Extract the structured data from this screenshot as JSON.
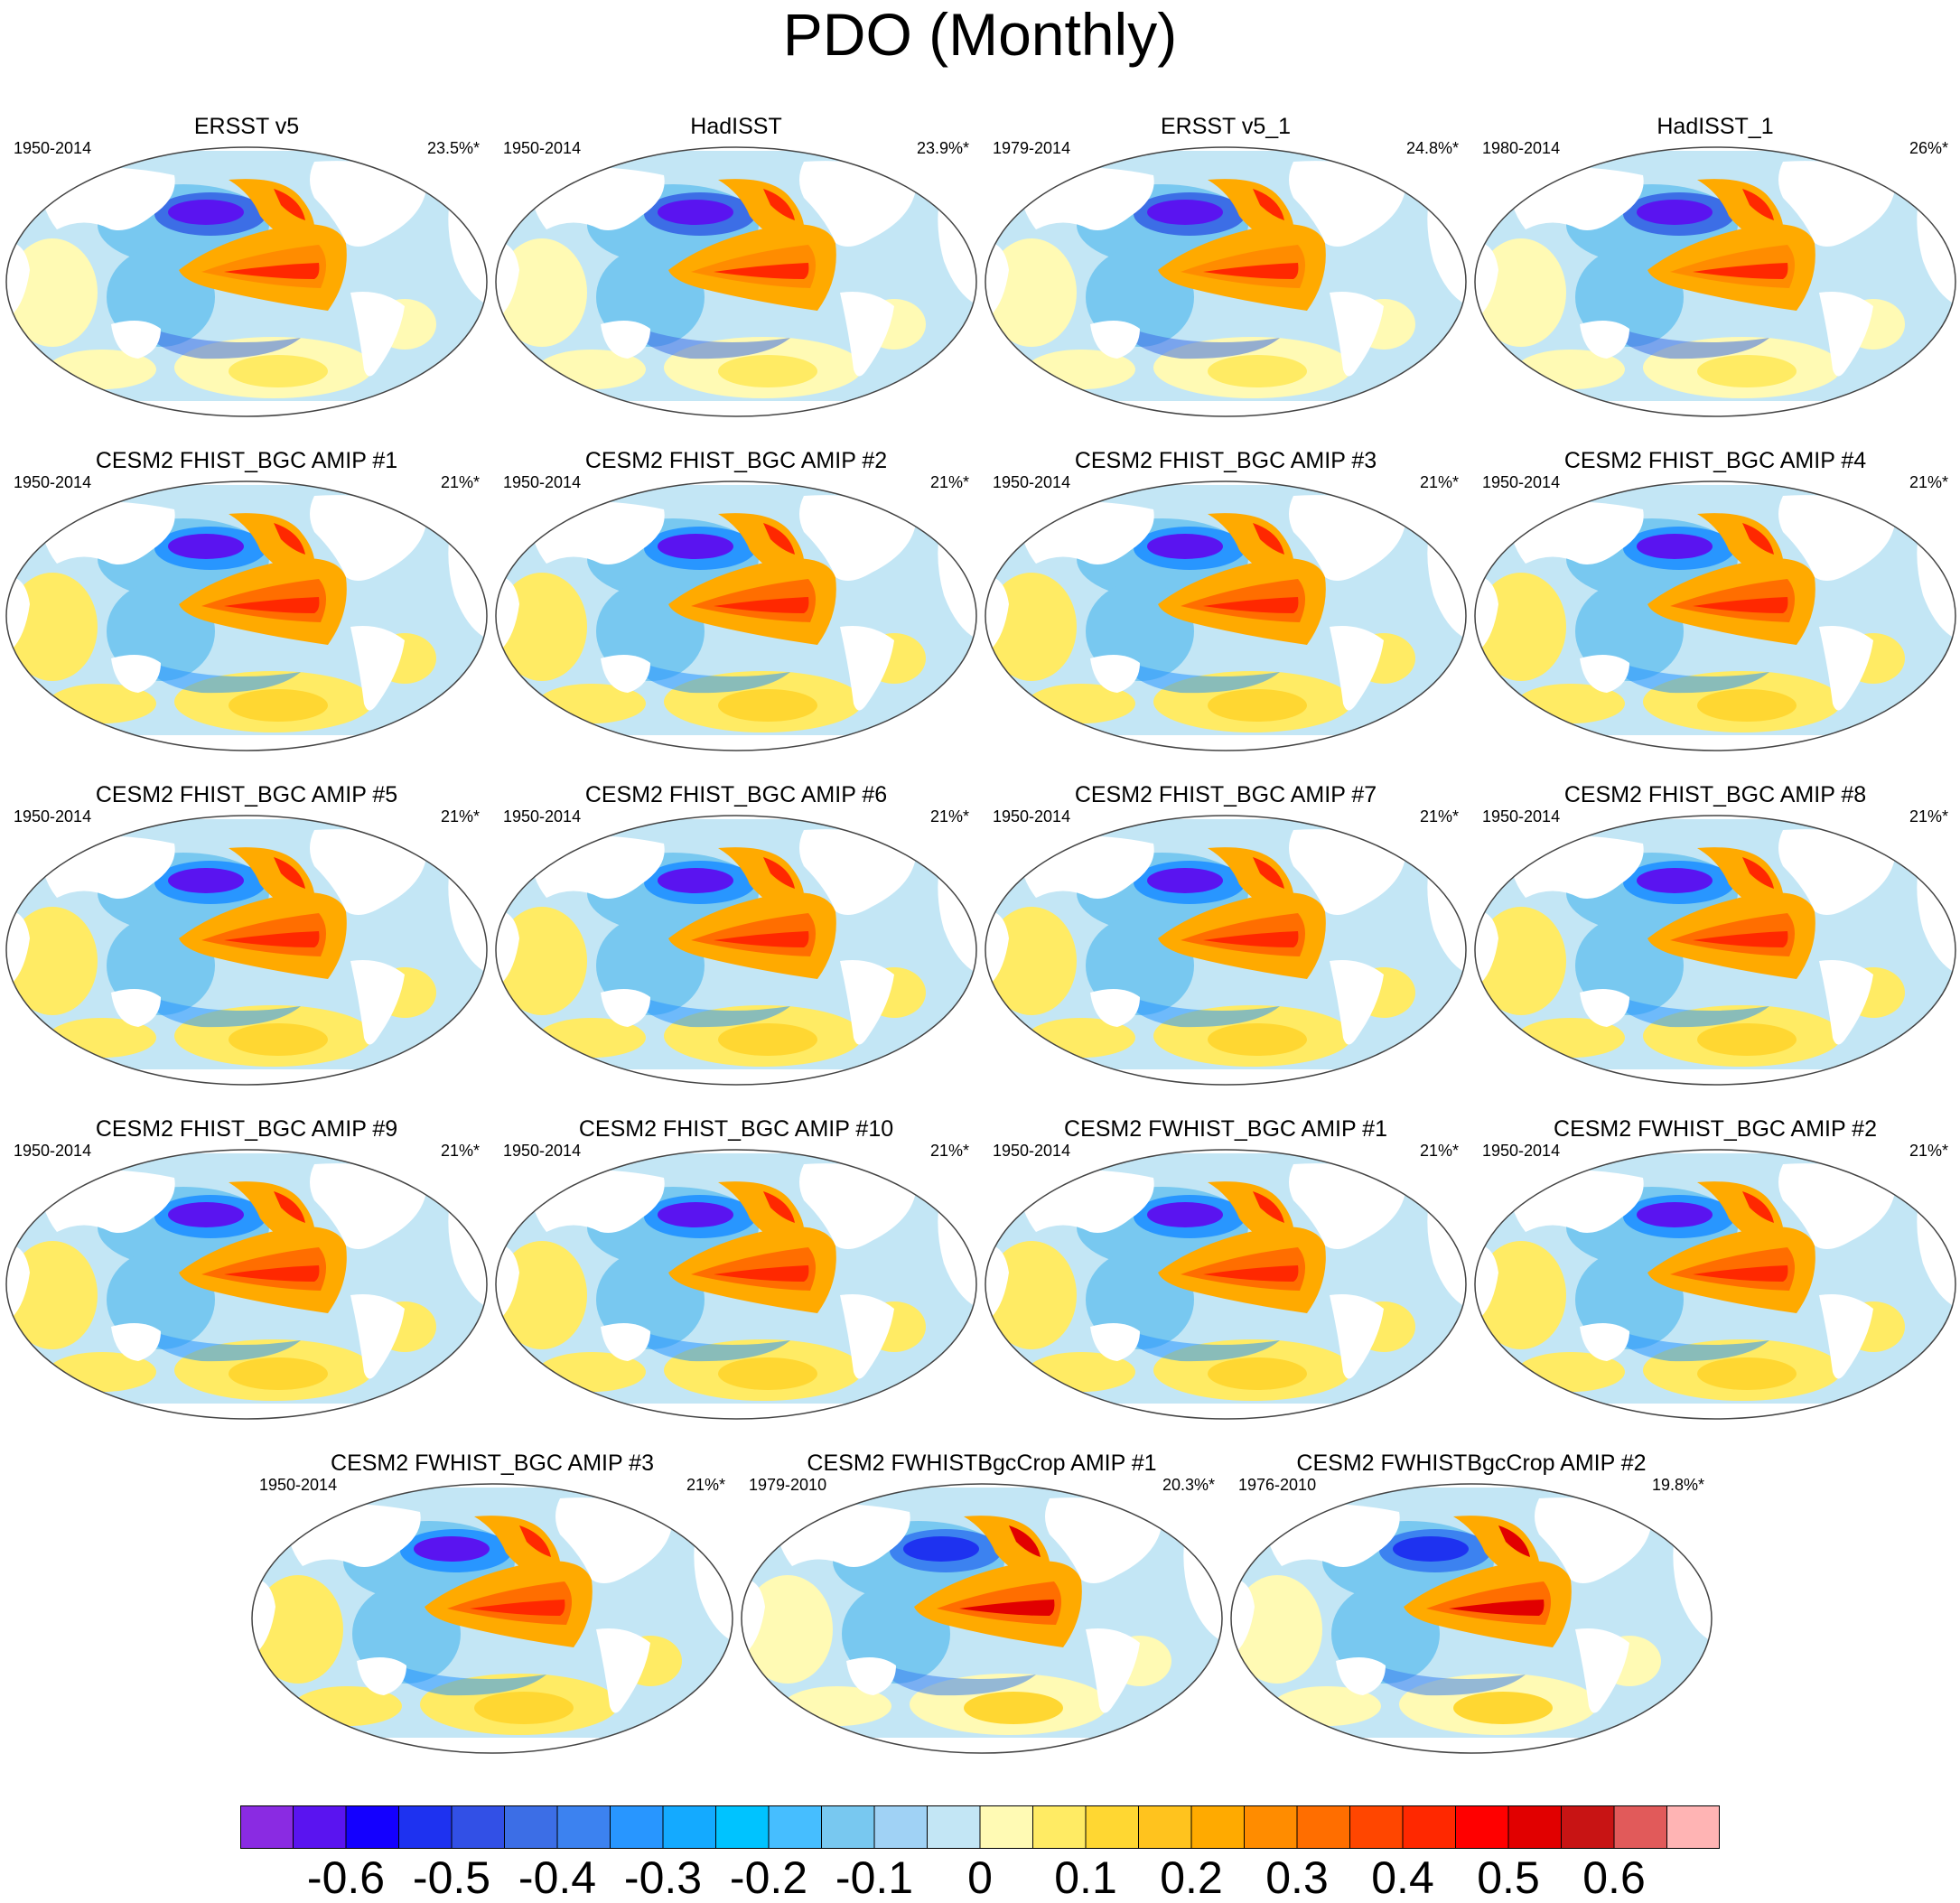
{
  "title": "PDO (Monthly)",
  "chart_data": {
    "type": "map",
    "projection": "Robinson (Pacific-centered)",
    "title": "PDO (Monthly)",
    "panels": [
      {
        "name": "ERSST v5",
        "period": "1950-2014",
        "variance": "23.5%*",
        "style": "obs"
      },
      {
        "name": "HadISST",
        "period": "1950-2014",
        "variance": "23.9%*",
        "style": "obs"
      },
      {
        "name": "ERSST v5_1",
        "period": "1979-2014",
        "variance": "24.8%*",
        "style": "obs"
      },
      {
        "name": "HadISST_1",
        "period": "1980-2014",
        "variance": "26%*",
        "style": "obs"
      },
      {
        "name": "CESM2 FHIST_BGC AMIP #1",
        "period": "1950-2014",
        "variance": "21%*",
        "style": "model"
      },
      {
        "name": "CESM2 FHIST_BGC AMIP #2",
        "period": "1950-2014",
        "variance": "21%*",
        "style": "model"
      },
      {
        "name": "CESM2 FHIST_BGC AMIP #3",
        "period": "1950-2014",
        "variance": "21%*",
        "style": "model"
      },
      {
        "name": "CESM2 FHIST_BGC AMIP #4",
        "period": "1950-2014",
        "variance": "21%*",
        "style": "model"
      },
      {
        "name": "CESM2 FHIST_BGC AMIP #5",
        "period": "1950-2014",
        "variance": "21%*",
        "style": "model"
      },
      {
        "name": "CESM2 FHIST_BGC AMIP #6",
        "period": "1950-2014",
        "variance": "21%*",
        "style": "model"
      },
      {
        "name": "CESM2 FHIST_BGC AMIP #7",
        "period": "1950-2014",
        "variance": "21%*",
        "style": "model"
      },
      {
        "name": "CESM2 FHIST_BGC AMIP #8",
        "period": "1950-2014",
        "variance": "21%*",
        "style": "model"
      },
      {
        "name": "CESM2 FHIST_BGC AMIP #9",
        "period": "1950-2014",
        "variance": "21%*",
        "style": "model"
      },
      {
        "name": "CESM2 FHIST_BGC AMIP #10",
        "period": "1950-2014",
        "variance": "21%*",
        "style": "model"
      },
      {
        "name": "CESM2 FWHIST_BGC AMIP #1",
        "period": "1950-2014",
        "variance": "21%*",
        "style": "model"
      },
      {
        "name": "CESM2 FWHIST_BGC AMIP #2",
        "period": "1950-2014",
        "variance": "21%*",
        "style": "model"
      },
      {
        "name": "CESM2 FWHIST_BGC AMIP #3",
        "period": "1950-2014",
        "variance": "21%*",
        "style": "model"
      },
      {
        "name": "CESM2 FWHISTBgcCrop AMIP #1",
        "period": "1979-2010",
        "variance": "20.3%*",
        "style": "crop"
      },
      {
        "name": "CESM2 FWHISTBgcCrop AMIP #2",
        "period": "1976-2010",
        "variance": "19.8%*",
        "style": "crop"
      }
    ],
    "colorbar": {
      "colors": [
        "#8a2be2",
        "#5a14f0",
        "#1400ff",
        "#1e32f0",
        "#3250e6",
        "#3c6ee6",
        "#3c82f0",
        "#2896ff",
        "#14aaff",
        "#00c3ff",
        "#46beff",
        "#78c8f0",
        "#a0d2f5",
        "#c3e6f5",
        "#fffab4",
        "#ffeb64",
        "#ffd732",
        "#ffc31e",
        "#ffaa00",
        "#ff8c00",
        "#ff6e00",
        "#ff4600",
        "#ff2800",
        "#ff0000",
        "#e10000",
        "#c81414",
        "#e15a5a",
        "#ffb4b4"
      ],
      "tick_values": [
        -0.6,
        -0.5,
        -0.4,
        -0.3,
        -0.2,
        -0.1,
        0,
        0.1,
        0.2,
        0.3,
        0.4,
        0.5,
        0.6
      ],
      "tick_labels": [
        "-0.6",
        "-0.5",
        "-0.4",
        "-0.3",
        "-0.2",
        "-0.1",
        "0",
        "0.1",
        "0.2",
        "0.3",
        "0.4",
        "0.5",
        "0.6"
      ],
      "range": [
        -0.7,
        0.7
      ],
      "units": ""
    }
  }
}
